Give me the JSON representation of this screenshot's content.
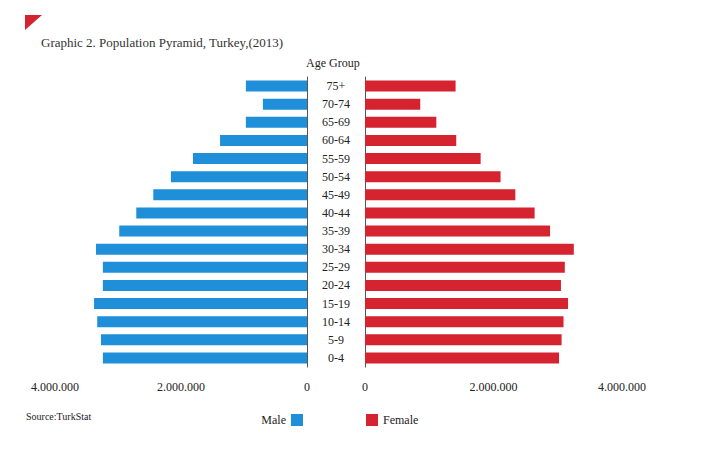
{
  "chart_data": {
    "type": "bar",
    "orientation": "horizontal",
    "title": "Graphic 2. Population Pyramid, Turkey,(2013)",
    "y_label": "Age Group",
    "source": "Source:TurkStat",
    "categories": [
      "0-4",
      "5-9",
      "10-14",
      "15-19",
      "20-24",
      "25-29",
      "30-34",
      "35-39",
      "40-44",
      "45-49",
      "50-54",
      "55-59",
      "60-64",
      "65-69",
      "70-74",
      "75+"
    ],
    "series": [
      {
        "name": "Male",
        "color": "#1e8fd8",
        "values": [
          3240000,
          3270000,
          3330000,
          3380000,
          3240000,
          3240000,
          3350000,
          2980000,
          2710000,
          2440000,
          2160000,
          1810000,
          1380000,
          970000,
          700000,
          970000
        ]
      },
      {
        "name": "Female",
        "color": "#d5232f",
        "values": [
          3020000,
          3060000,
          3090000,
          3160000,
          3050000,
          3110000,
          3250000,
          2880000,
          2640000,
          2340000,
          2110000,
          1800000,
          1420000,
          1110000,
          860000,
          1410000
        ]
      }
    ],
    "xlim": [
      0,
      4000000
    ],
    "xticks": [
      0,
      {
        "value": 2000000,
        "label": "2.000.000"
      },
      {
        "value": 4000000,
        "label": "4.000.000"
      }
    ],
    "grid": false
  }
}
